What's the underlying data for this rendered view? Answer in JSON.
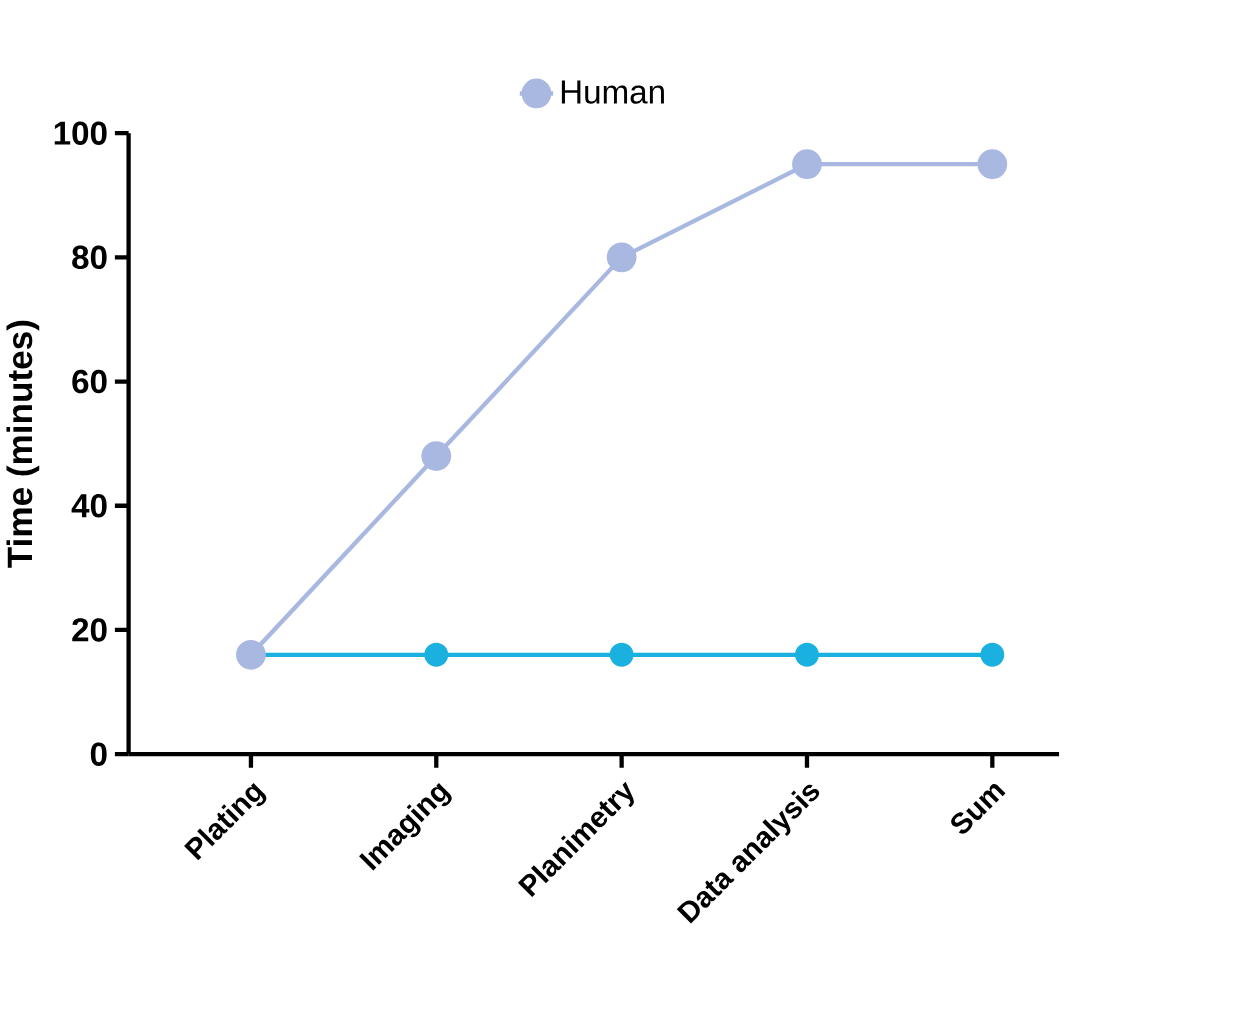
{
  "chart_data": {
    "type": "line",
    "ylabel": "Time (minutes)",
    "categories": [
      "Plating",
      "Imaging",
      "Planimetry",
      "Data analysis",
      "Sum"
    ],
    "series": [
      {
        "name": "Human",
        "color": "#a9b8e0",
        "values": [
          16,
          48,
          80,
          95,
          95
        ]
      },
      {
        "color": "#1ab0e0",
        "values": [
          16,
          16,
          16,
          16,
          16
        ]
      }
    ],
    "ylim": [
      0,
      100
    ],
    "yticks": [
      0,
      20,
      40,
      60,
      80,
      100
    ],
    "grid": false,
    "legend": "top",
    "marker": "circle",
    "line_style": "solid"
  }
}
